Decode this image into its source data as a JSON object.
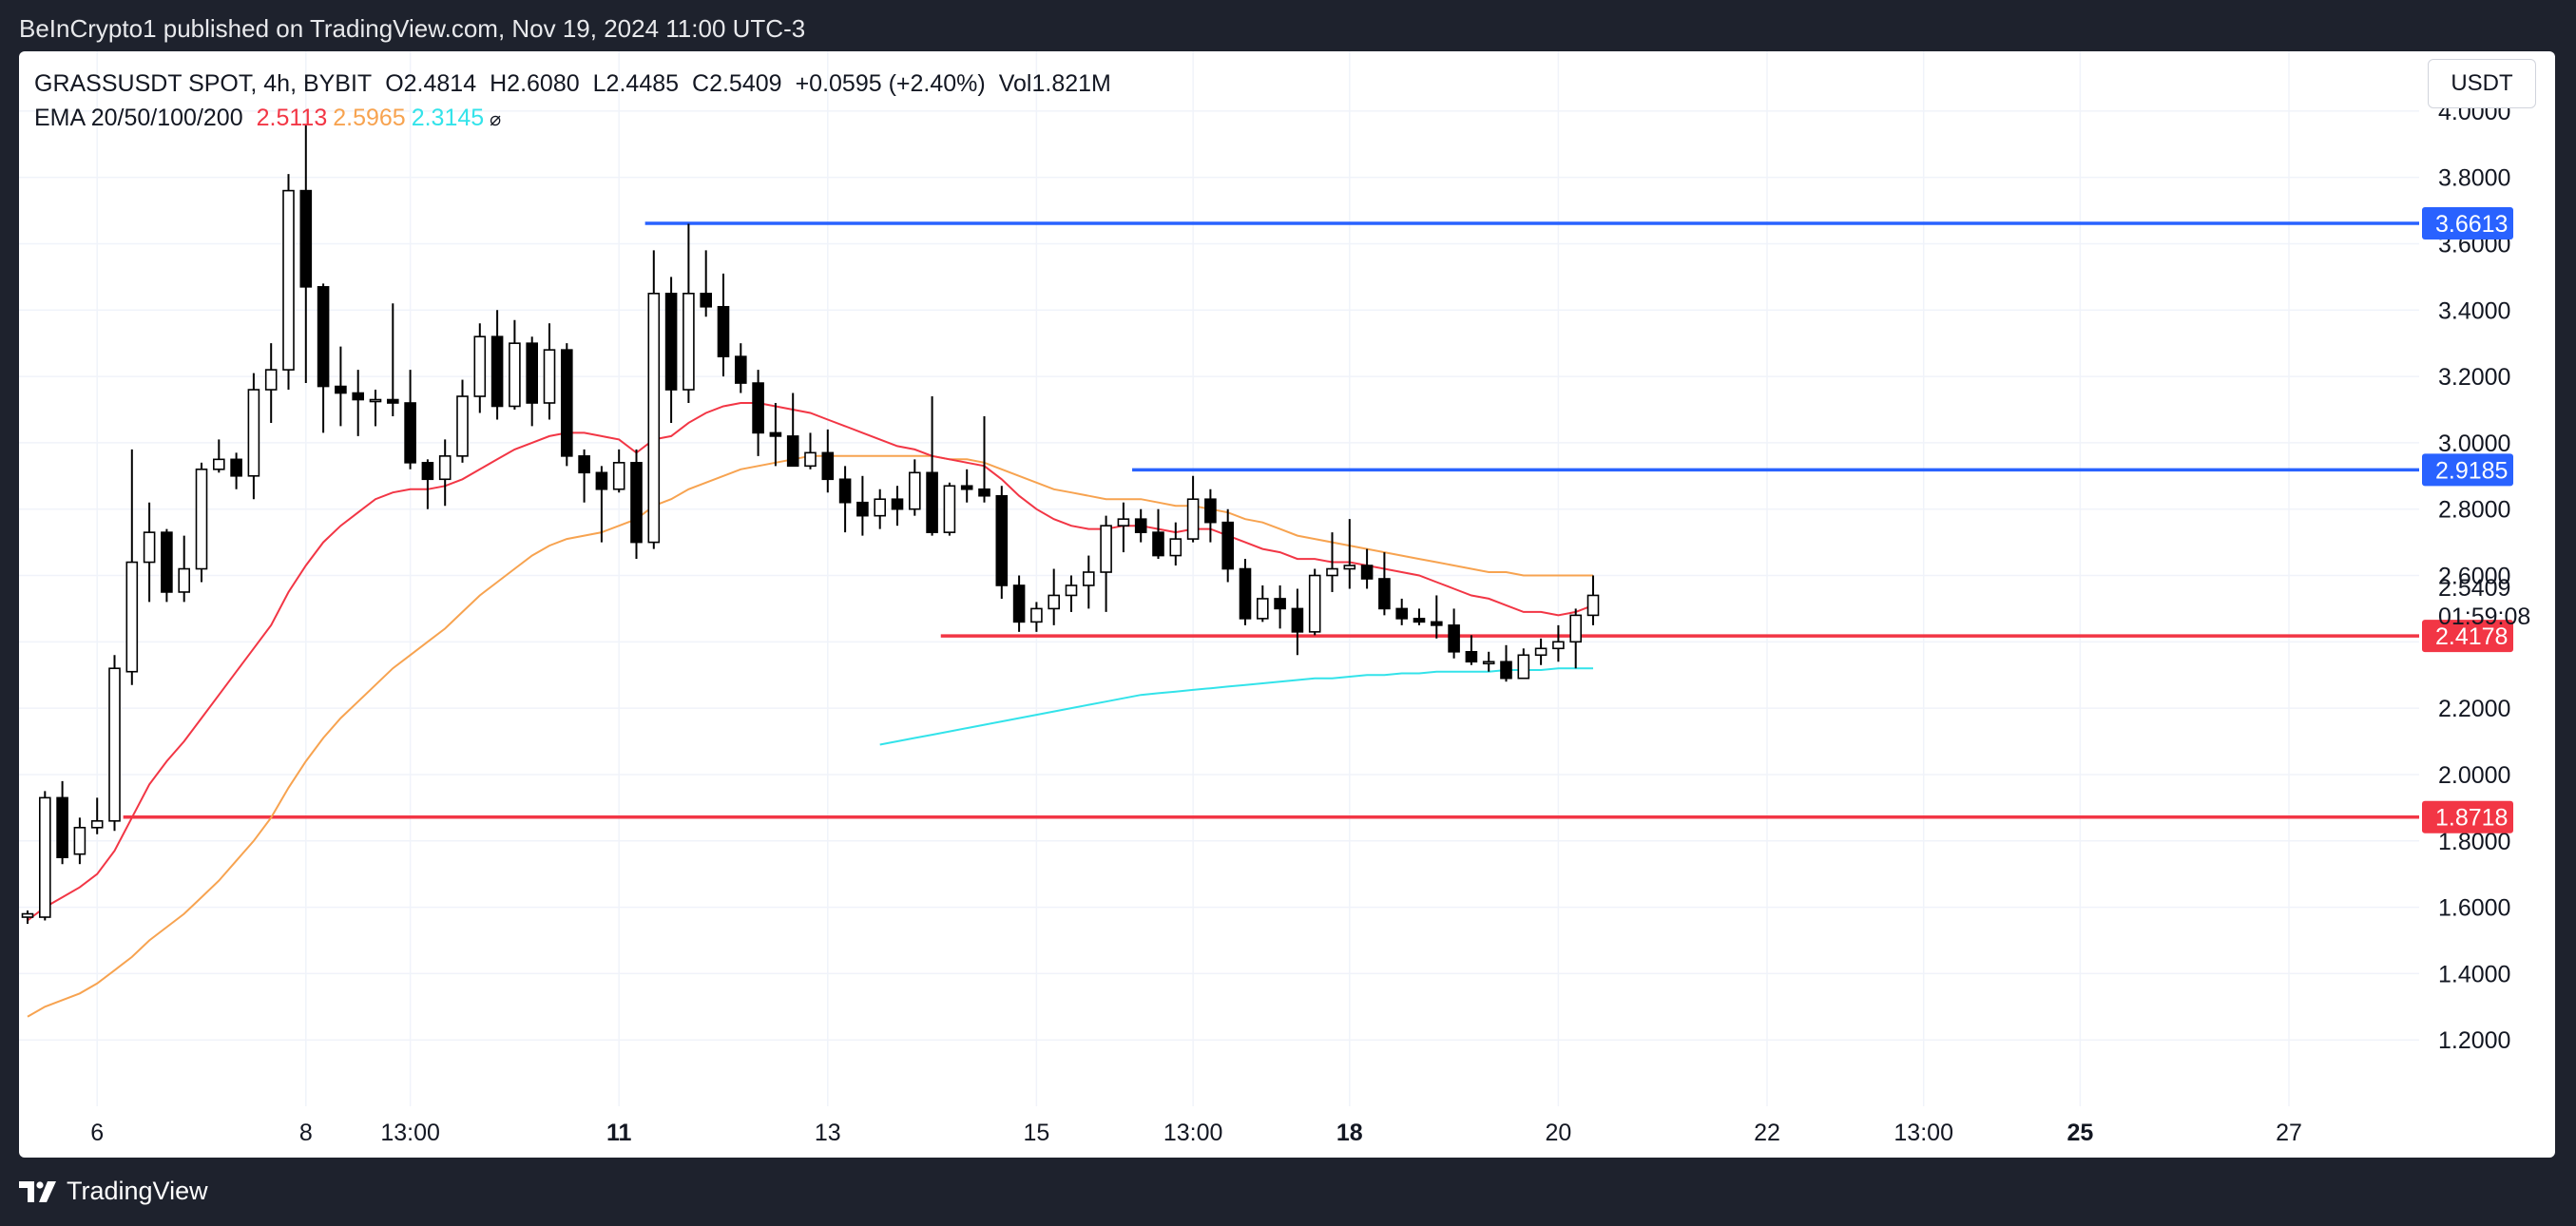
{
  "header": {
    "published": "BeInCrypto1 published on TradingView.com, Nov 19, 2024 11:00 UTC-3"
  },
  "legend": {
    "symbol": "GRASSUSDT SPOT, 4h, BYBIT",
    "open": "O2.4814",
    "high": "H2.6080",
    "low": "L2.4485",
    "close": "C2.5409",
    "change": "+0.0595 (+2.40%)",
    "volume": "Vol1.821M",
    "ema_label": "EMA 20/50/100/200",
    "ema20": "2.5113",
    "ema50": "2.5965",
    "ema100": "2.3145",
    "hide_symbol": "⌀"
  },
  "currency": "USDT",
  "countdown": "01:59:08",
  "brand": "TradingView",
  "colors": {
    "up": "#ffffff",
    "down": "#000000",
    "ema20": "#f23645",
    "ema50": "#f7a350",
    "ema100": "#33e3ea",
    "resistance": "#2962ff",
    "support": "#f23645",
    "grid": "#f0f3fa"
  },
  "chart_data": {
    "type": "candlestick",
    "title": "GRASSUSDT SPOT, 4h, BYBIT",
    "ylim": [
      1.0,
      4.18
    ],
    "y_ticks": [
      "4.0000",
      "3.8000",
      "3.6000",
      "3.4000",
      "3.2000",
      "3.0000",
      "2.8000",
      "2.6000",
      "2.4000",
      "2.2000",
      "2.0000",
      "1.8000",
      "1.6000",
      "1.4000",
      "1.2000"
    ],
    "x_ticks": [
      {
        "label": "6",
        "bold": false,
        "bar": 4
      },
      {
        "label": "8",
        "bold": false,
        "bar": 16
      },
      {
        "label": "13:00",
        "bold": false,
        "bar": 22
      },
      {
        "label": "11",
        "bold": true,
        "bar": 34
      },
      {
        "label": "13",
        "bold": false,
        "bar": 46
      },
      {
        "label": "15",
        "bold": false,
        "bar": 58
      },
      {
        "label": "13:00",
        "bold": false,
        "bar": 67
      },
      {
        "label": "18",
        "bold": true,
        "bar": 76
      },
      {
        "label": "20",
        "bold": false,
        "bar": 88
      },
      {
        "label": "22",
        "bold": false,
        "bar": 100
      },
      {
        "label": "13:00",
        "bold": false,
        "bar": 109
      },
      {
        "label": "25",
        "bold": true,
        "bar": 118
      },
      {
        "label": "27",
        "bold": false,
        "bar": 130
      }
    ],
    "candles": [
      [
        1.57,
        1.58,
        1.55,
        1.59
      ],
      [
        1.57,
        1.93,
        1.56,
        1.95
      ],
      [
        1.93,
        1.75,
        1.73,
        1.98
      ],
      [
        1.76,
        1.84,
        1.73,
        1.87
      ],
      [
        1.84,
        1.86,
        1.82,
        1.93
      ],
      [
        1.86,
        2.32,
        1.83,
        2.36
      ],
      [
        2.31,
        2.64,
        2.27,
        2.98
      ],
      [
        2.64,
        2.73,
        2.52,
        2.82
      ],
      [
        2.73,
        2.55,
        2.52,
        2.74
      ],
      [
        2.55,
        2.62,
        2.52,
        2.72
      ],
      [
        2.62,
        2.92,
        2.58,
        2.94
      ],
      [
        2.92,
        2.95,
        2.91,
        3.01
      ],
      [
        2.95,
        2.9,
        2.86,
        2.97
      ],
      [
        2.9,
        3.16,
        2.83,
        3.21
      ],
      [
        3.16,
        3.22,
        3.06,
        3.3
      ],
      [
        3.22,
        3.76,
        3.16,
        3.81
      ],
      [
        3.76,
        3.47,
        3.18,
        3.96
      ],
      [
        3.47,
        3.17,
        3.03,
        3.48
      ],
      [
        3.17,
        3.15,
        3.05,
        3.29
      ],
      [
        3.15,
        3.13,
        3.02,
        3.22
      ],
      [
        3.13,
        3.13,
        3.05,
        3.16
      ],
      [
        3.13,
        3.12,
        3.08,
        3.42
      ],
      [
        3.12,
        2.94,
        2.92,
        3.22
      ],
      [
        2.94,
        2.89,
        2.8,
        2.95
      ],
      [
        2.89,
        2.96,
        2.81,
        3.01
      ],
      [
        2.96,
        3.14,
        2.94,
        3.19
      ],
      [
        3.14,
        3.32,
        3.09,
        3.36
      ],
      [
        3.32,
        3.11,
        3.07,
        3.4
      ],
      [
        3.11,
        3.3,
        3.1,
        3.37
      ],
      [
        3.3,
        3.12,
        3.05,
        3.32
      ],
      [
        3.12,
        3.28,
        3.07,
        3.36
      ],
      [
        3.28,
        2.96,
        2.93,
        3.3
      ],
      [
        2.96,
        2.91,
        2.82,
        2.98
      ],
      [
        2.91,
        2.86,
        2.7,
        2.93
      ],
      [
        2.86,
        2.94,
        2.85,
        2.98
      ],
      [
        2.94,
        2.7,
        2.65,
        2.98
      ],
      [
        2.7,
        3.45,
        2.68,
        3.58
      ],
      [
        3.45,
        3.16,
        3.06,
        3.5
      ],
      [
        3.16,
        3.45,
        3.12,
        3.66
      ],
      [
        3.45,
        3.41,
        3.38,
        3.58
      ],
      [
        3.41,
        3.26,
        3.2,
        3.51
      ],
      [
        3.26,
        3.18,
        3.15,
        3.3
      ],
      [
        3.18,
        3.03,
        2.96,
        3.22
      ],
      [
        3.03,
        3.02,
        2.93,
        3.12
      ],
      [
        3.02,
        2.93,
        2.96,
        3.15
      ],
      [
        2.93,
        2.97,
        2.92,
        3.03
      ],
      [
        2.97,
        2.89,
        2.85,
        3.04
      ],
      [
        2.89,
        2.82,
        2.73,
        2.93
      ],
      [
        2.82,
        2.78,
        2.72,
        2.9
      ],
      [
        2.78,
        2.83,
        2.74,
        2.86
      ],
      [
        2.83,
        2.8,
        2.75,
        2.87
      ],
      [
        2.8,
        2.91,
        2.78,
        2.95
      ],
      [
        2.91,
        2.73,
        2.72,
        3.14
      ],
      [
        2.73,
        2.87,
        2.72,
        2.88
      ],
      [
        2.87,
        2.86,
        2.82,
        2.92
      ],
      [
        2.86,
        2.84,
        2.82,
        3.08
      ],
      [
        2.84,
        2.57,
        2.53,
        2.87
      ],
      [
        2.57,
        2.46,
        2.43,
        2.6
      ],
      [
        2.46,
        2.5,
        2.43,
        2.52
      ],
      [
        2.5,
        2.54,
        2.45,
        2.62
      ],
      [
        2.54,
        2.57,
        2.49,
        2.6
      ],
      [
        2.57,
        2.61,
        2.5,
        2.66
      ],
      [
        2.61,
        2.75,
        2.49,
        2.78
      ],
      [
        2.75,
        2.77,
        2.67,
        2.82
      ],
      [
        2.77,
        2.73,
        2.7,
        2.8
      ],
      [
        2.73,
        2.66,
        2.65,
        2.8
      ],
      [
        2.66,
        2.71,
        2.63,
        2.76
      ],
      [
        2.71,
        2.83,
        2.7,
        2.9
      ],
      [
        2.83,
        2.76,
        2.7,
        2.86
      ],
      [
        2.76,
        2.62,
        2.58,
        2.8
      ],
      [
        2.62,
        2.47,
        2.45,
        2.65
      ],
      [
        2.47,
        2.53,
        2.46,
        2.57
      ],
      [
        2.53,
        2.5,
        2.44,
        2.57
      ],
      [
        2.5,
        2.43,
        2.36,
        2.56
      ],
      [
        2.43,
        2.6,
        2.42,
        2.62
      ],
      [
        2.6,
        2.62,
        2.55,
        2.73
      ],
      [
        2.62,
        2.63,
        2.56,
        2.77
      ],
      [
        2.63,
        2.59,
        2.56,
        2.68
      ],
      [
        2.59,
        2.5,
        2.48,
        2.67
      ],
      [
        2.5,
        2.47,
        2.45,
        2.53
      ],
      [
        2.47,
        2.46,
        2.45,
        2.5
      ],
      [
        2.46,
        2.45,
        2.41,
        2.54
      ],
      [
        2.45,
        2.37,
        2.35,
        2.5
      ],
      [
        2.37,
        2.34,
        2.33,
        2.42
      ],
      [
        2.34,
        2.34,
        2.31,
        2.37
      ],
      [
        2.34,
        2.29,
        2.28,
        2.39
      ],
      [
        2.29,
        2.36,
        2.29,
        2.38
      ],
      [
        2.36,
        2.38,
        2.33,
        2.41
      ],
      [
        2.38,
        2.4,
        2.34,
        2.45
      ],
      [
        2.4,
        2.48,
        2.32,
        2.5
      ],
      [
        2.48,
        2.54,
        2.45,
        2.6
      ]
    ],
    "ema20": {
      "start_bar": 0,
      "values": [
        1.56,
        1.6,
        1.63,
        1.66,
        1.7,
        1.77,
        1.87,
        1.97,
        2.04,
        2.1,
        2.17,
        2.24,
        2.31,
        2.38,
        2.45,
        2.55,
        2.63,
        2.7,
        2.75,
        2.79,
        2.83,
        2.85,
        2.86,
        2.86,
        2.87,
        2.89,
        2.92,
        2.95,
        2.98,
        3.0,
        3.02,
        3.03,
        3.03,
        3.02,
        3.01,
        2.97,
        3.01,
        3.02,
        3.06,
        3.09,
        3.11,
        3.12,
        3.12,
        3.11,
        3.1,
        3.09,
        3.07,
        3.05,
        3.03,
        3.01,
        2.99,
        2.98,
        2.96,
        2.95,
        2.94,
        2.93,
        2.89,
        2.84,
        2.8,
        2.77,
        2.75,
        2.74,
        2.74,
        2.75,
        2.75,
        2.74,
        2.73,
        2.74,
        2.74,
        2.72,
        2.7,
        2.68,
        2.67,
        2.65,
        2.65,
        2.64,
        2.64,
        2.63,
        2.62,
        2.61,
        2.6,
        2.58,
        2.56,
        2.54,
        2.53,
        2.51,
        2.49,
        2.49,
        2.48,
        2.49,
        2.51
      ]
    },
    "ema50": {
      "start_bar": 0,
      "values": [
        1.27,
        1.3,
        1.32,
        1.34,
        1.37,
        1.41,
        1.45,
        1.5,
        1.54,
        1.58,
        1.63,
        1.68,
        1.74,
        1.8,
        1.87,
        1.96,
        2.04,
        2.11,
        2.17,
        2.22,
        2.27,
        2.32,
        2.36,
        2.4,
        2.44,
        2.49,
        2.54,
        2.58,
        2.62,
        2.66,
        2.69,
        2.71,
        2.72,
        2.73,
        2.75,
        2.77,
        2.81,
        2.83,
        2.86,
        2.88,
        2.9,
        2.92,
        2.93,
        2.94,
        2.95,
        2.96,
        2.96,
        2.96,
        2.96,
        2.96,
        2.96,
        2.96,
        2.96,
        2.95,
        2.95,
        2.94,
        2.92,
        2.9,
        2.88,
        2.86,
        2.85,
        2.84,
        2.83,
        2.83,
        2.83,
        2.82,
        2.81,
        2.81,
        2.8,
        2.79,
        2.77,
        2.76,
        2.74,
        2.72,
        2.71,
        2.7,
        2.69,
        2.68,
        2.67,
        2.66,
        2.65,
        2.64,
        2.63,
        2.62,
        2.61,
        2.61,
        2.6,
        2.6,
        2.6,
        2.6,
        2.6
      ]
    },
    "ema100": {
      "start_bar": 49,
      "values": [
        2.09,
        2.1,
        2.11,
        2.12,
        2.13,
        2.14,
        2.15,
        2.16,
        2.17,
        2.18,
        2.19,
        2.2,
        2.21,
        2.22,
        2.23,
        2.24,
        2.245,
        2.25,
        2.255,
        2.26,
        2.265,
        2.27,
        2.275,
        2.28,
        2.285,
        2.29,
        2.29,
        2.295,
        2.3,
        2.3,
        2.305,
        2.305,
        2.31,
        2.31,
        2.31,
        2.31,
        2.315,
        2.315,
        2.315,
        2.32,
        2.32,
        2.32
      ]
    },
    "levels": [
      {
        "value": 3.6613,
        "label": "3.6613",
        "color": "#2962ff",
        "start_bar": 35.5
      },
      {
        "value": 2.9185,
        "label": "2.9185",
        "color": "#2962ff",
        "start_bar": 63.5
      },
      {
        "value": 2.4178,
        "label": "2.4178",
        "color": "#f23645",
        "start_bar": 52.5
      },
      {
        "value": 1.8718,
        "label": "1.8718",
        "color": "#f23645",
        "start_bar": 5.5
      }
    ],
    "last_price": {
      "value": 2.5409,
      "label": "2.5409"
    }
  }
}
